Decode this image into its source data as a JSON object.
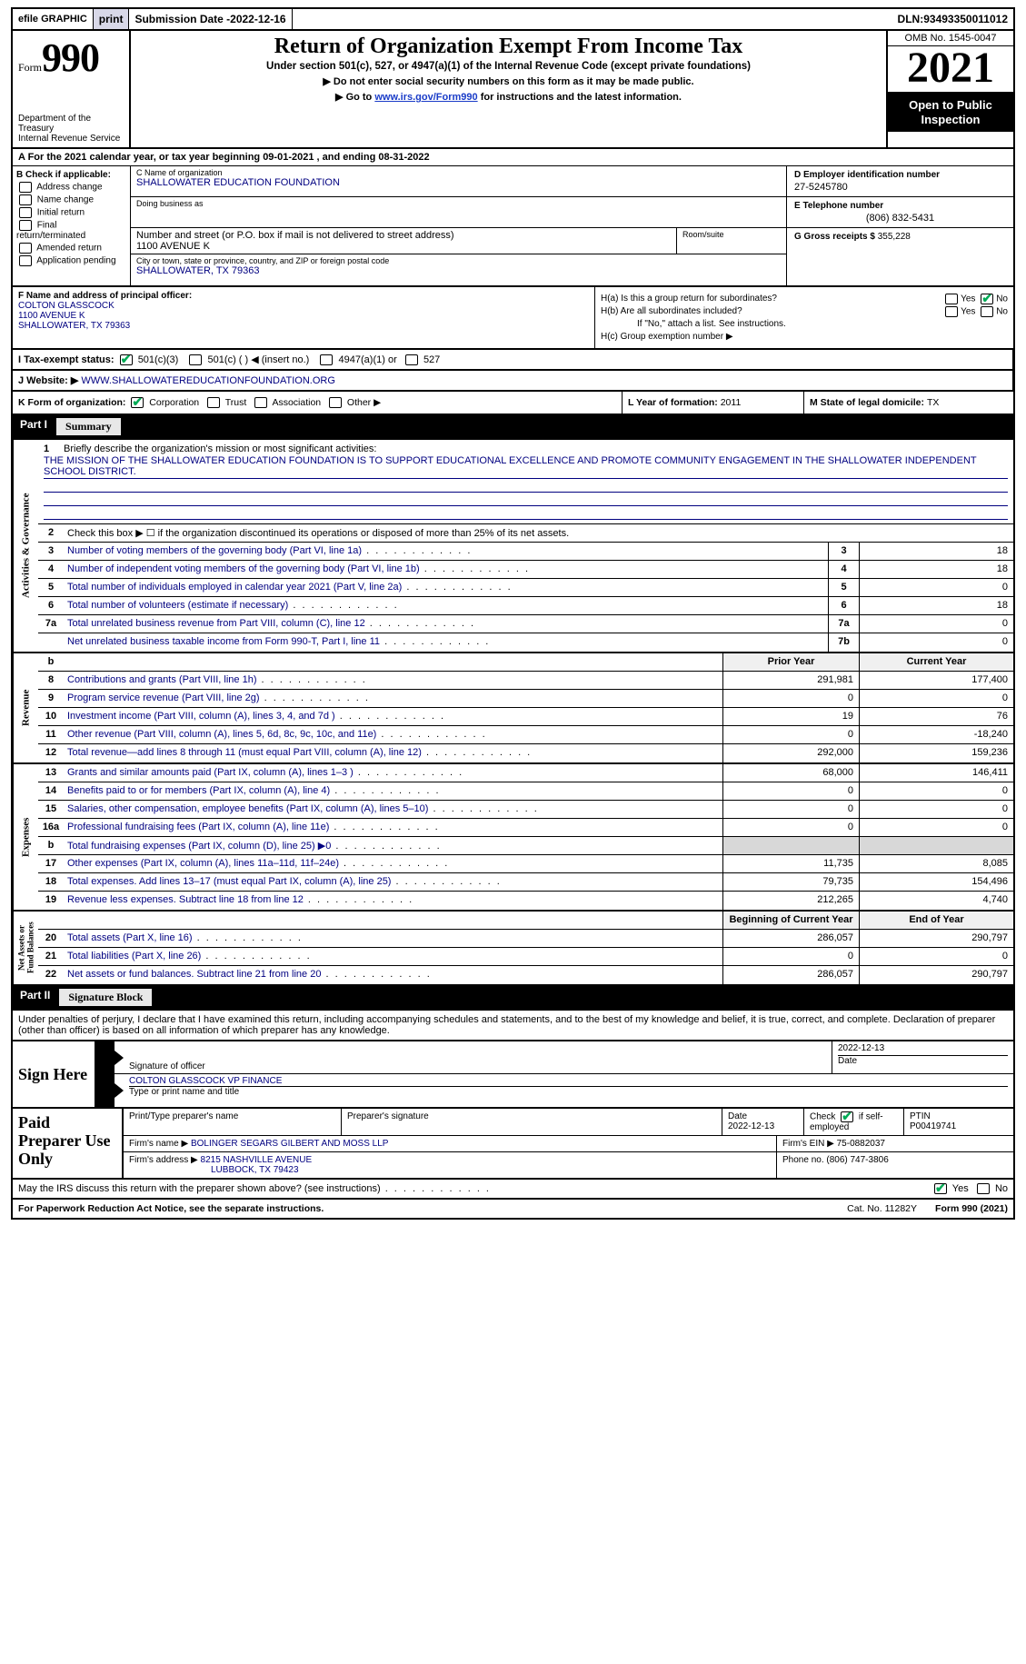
{
  "topbar": {
    "efile": "efile GRAPHIC",
    "print": "print",
    "sub_label": "Submission Date - ",
    "sub_date": "2022-12-16",
    "dln_label": "DLN: ",
    "dln": "93493350011012"
  },
  "header": {
    "form_word": "Form",
    "form_num": "990",
    "dept": "Department of the Treasury\nInternal Revenue Service",
    "title": "Return of Organization Exempt From Income Tax",
    "sub1": "Under section 501(c), 527, or 4947(a)(1) of the Internal Revenue Code (except private foundations)",
    "sub2": "▶ Do not enter social security numbers on this form as it may be made public.",
    "sub3_pre": "▶ Go to ",
    "sub3_link": "www.irs.gov/Form990",
    "sub3_post": " for instructions and the latest information.",
    "omb": "OMB No. 1545-0047",
    "year": "2021",
    "inspect": "Open to Public Inspection"
  },
  "row_a": {
    "text": "A  For the 2021 calendar year, or tax year beginning 09-01-2021    , and ending 08-31-2022"
  },
  "col_b": {
    "hdr": "B Check if applicable:",
    "opts": [
      "Address change",
      "Name change",
      "Initial return",
      "Final return/terminated",
      "Amended return",
      "Application pending"
    ]
  },
  "col_c": {
    "name_lbl": "C Name of organization",
    "name": "SHALLOWATER EDUCATION FOUNDATION",
    "dba_lbl": "Doing business as",
    "dba": "",
    "street_lbl": "Number and street (or P.O. box if mail is not delivered to street address)",
    "room_lbl": "Room/suite",
    "street": "1100 AVENUE K",
    "city_lbl": "City or town, state or province, country, and ZIP or foreign postal code",
    "city": "SHALLOWATER, TX  79363"
  },
  "col_d": {
    "d_lbl": "D Employer identification number",
    "d_val": "27-5245780",
    "e_lbl": "E Telephone number",
    "e_val": "(806) 832-5431",
    "g_lbl": "G Gross receipts $ ",
    "g_val": "355,228"
  },
  "f": {
    "lbl": "F Name and address of principal officer:",
    "line1": "COLTON GLASSCOCK",
    "line2": "1100 AVENUE K",
    "line3": "SHALLOWATER, TX  79363"
  },
  "h": {
    "a": "H(a)  Is this a group return for subordinates?",
    "b": "H(b)  Are all subordinates included?",
    "b_note": "If \"No,\" attach a list. See instructions.",
    "c": "H(c)  Group exemption number ▶",
    "yes": "Yes",
    "no": "No"
  },
  "i": {
    "lbl": "I    Tax-exempt status:",
    "o1": "501(c)(3)",
    "o2": "501(c) (  ) ◀ (insert no.)",
    "o3": "4947(a)(1) or",
    "o4": "527"
  },
  "j": {
    "lbl": "J    Website: ▶  ",
    "val": "WWW.SHALLOWATEREDUCATIONFOUNDATION.ORG"
  },
  "k": {
    "lbl": "K Form of organization:",
    "o1": "Corporation",
    "o2": "Trust",
    "o3": "Association",
    "o4": "Other ▶"
  },
  "l": {
    "lbl": "L Year of formation: ",
    "val": "2011"
  },
  "m": {
    "lbl": "M State of legal domicile: ",
    "val": "TX"
  },
  "parts": {
    "p1": "Part I",
    "p1t": "Summary",
    "p2": "Part II",
    "p2t": "Signature Block"
  },
  "vtabs": {
    "ag": "Activities & Governance",
    "rev": "Revenue",
    "exp": "Expenses",
    "na": "Net Assets or\nFund Balances"
  },
  "q1": {
    "lbl": "Briefly describe the organization's mission or most significant activities:",
    "mission": "THE MISSION OF THE SHALLOWATER EDUCATION FOUNDATION IS TO SUPPORT EDUCATIONAL EXCELLENCE AND PROMOTE COMMUNITY ENGAGEMENT IN THE SHALLOWATER INDEPENDENT SCHOOL DISTRICT."
  },
  "q2": "Check this box ▶ ☐  if the organization discontinued its operations or disposed of more than 25% of its net assets.",
  "lines_ag": [
    {
      "n": "3",
      "t": "Number of voting members of the governing body (Part VI, line 1a)",
      "box": "3",
      "v": "18"
    },
    {
      "n": "4",
      "t": "Number of independent voting members of the governing body (Part VI, line 1b)",
      "box": "4",
      "v": "18"
    },
    {
      "n": "5",
      "t": "Total number of individuals employed in calendar year 2021 (Part V, line 2a)",
      "box": "5",
      "v": "0"
    },
    {
      "n": "6",
      "t": "Total number of volunteers (estimate if necessary)",
      "box": "6",
      "v": "18"
    },
    {
      "n": "7a",
      "t": "Total unrelated business revenue from Part VIII, column (C), line 12",
      "box": "7a",
      "v": "0"
    },
    {
      "n": "",
      "t": "Net unrelated business taxable income from Form 990-T, Part I, line 11",
      "box": "7b",
      "v": "0"
    }
  ],
  "col_hdrs": {
    "py": "Prior Year",
    "cy": "Current Year",
    "bcy": "Beginning of Current Year",
    "eoy": "End of Year"
  },
  "lines_rev": [
    {
      "n": "8",
      "t": "Contributions and grants (Part VIII, line 1h)",
      "py": "291,981",
      "cy": "177,400"
    },
    {
      "n": "9",
      "t": "Program service revenue (Part VIII, line 2g)",
      "py": "0",
      "cy": "0"
    },
    {
      "n": "10",
      "t": "Investment income (Part VIII, column (A), lines 3, 4, and 7d )",
      "py": "19",
      "cy": "76"
    },
    {
      "n": "11",
      "t": "Other revenue (Part VIII, column (A), lines 5, 6d, 8c, 9c, 10c, and 11e)",
      "py": "0",
      "cy": "-18,240"
    },
    {
      "n": "12",
      "t": "Total revenue—add lines 8 through 11 (must equal Part VIII, column (A), line 12)",
      "py": "292,000",
      "cy": "159,236"
    }
  ],
  "lines_exp": [
    {
      "n": "13",
      "t": "Grants and similar amounts paid (Part IX, column (A), lines 1–3 )",
      "py": "68,000",
      "cy": "146,411"
    },
    {
      "n": "14",
      "t": "Benefits paid to or for members (Part IX, column (A), line 4)",
      "py": "0",
      "cy": "0"
    },
    {
      "n": "15",
      "t": "Salaries, other compensation, employee benefits (Part IX, column (A), lines 5–10)",
      "py": "0",
      "cy": "0"
    },
    {
      "n": "16a",
      "t": "Professional fundraising fees (Part IX, column (A), line 11e)",
      "py": "0",
      "cy": "0"
    },
    {
      "n": "b",
      "t": "Total fundraising expenses (Part IX, column (D), line 25) ▶0",
      "py": "",
      "cy": "",
      "grey": true
    },
    {
      "n": "17",
      "t": "Other expenses (Part IX, column (A), lines 11a–11d, 11f–24e)",
      "py": "11,735",
      "cy": "8,085"
    },
    {
      "n": "18",
      "t": "Total expenses. Add lines 13–17 (must equal Part IX, column (A), line 25)",
      "py": "79,735",
      "cy": "154,496"
    },
    {
      "n": "19",
      "t": "Revenue less expenses. Subtract line 18 from line 12",
      "py": "212,265",
      "cy": "4,740"
    }
  ],
  "lines_na": [
    {
      "n": "20",
      "t": "Total assets (Part X, line 16)",
      "py": "286,057",
      "cy": "290,797"
    },
    {
      "n": "21",
      "t": "Total liabilities (Part X, line 26)",
      "py": "0",
      "cy": "0"
    },
    {
      "n": "22",
      "t": "Net assets or fund balances. Subtract line 21 from line 20",
      "py": "286,057",
      "cy": "290,797"
    }
  ],
  "sig": {
    "decl": "Under penalties of perjury, I declare that I have examined this return, including accompanying schedules and statements, and to the best of my knowledge and belief, it is true, correct, and complete. Declaration of preparer (other than officer) is based on all information of which preparer has any knowledge.",
    "sign_here": "Sign Here",
    "sig_lbl": "Signature of officer",
    "date_lbl": "Date",
    "date": "2022-12-13",
    "name": "COLTON GLASSCOCK  VP FINANCE",
    "name_lbl": "Type or print name and title"
  },
  "prep": {
    "hdr": "Paid Preparer Use Only",
    "c1": "Print/Type preparer's name",
    "c2": "Preparer's signature",
    "c3_lbl": "Date",
    "c3": "2022-12-13",
    "c4_lbl": "Check",
    "c4_txt": "if self-employed",
    "c5_lbl": "PTIN",
    "c5": "P00419741",
    "firm_lbl": "Firm's name    ▶ ",
    "firm": "BOLINGER SEGARS GILBERT AND MOSS LLP",
    "ein_lbl": "Firm's EIN ▶ ",
    "ein": "75-0882037",
    "addr_lbl": "Firm's address ▶ ",
    "addr1": "8215 NASHVILLE AVENUE",
    "addr2": "LUBBOCK, TX  79423",
    "phone_lbl": "Phone no. ",
    "phone": "(806) 747-3806"
  },
  "discuss": {
    "t": "May the IRS discuss this return with the preparer shown above? (see instructions)",
    "yes": "Yes",
    "no": "No"
  },
  "footer": {
    "l": "For Paperwork Reduction Act Notice, see the separate instructions.",
    "m": "Cat. No. 11282Y",
    "r": "Form 990 (2021)"
  }
}
